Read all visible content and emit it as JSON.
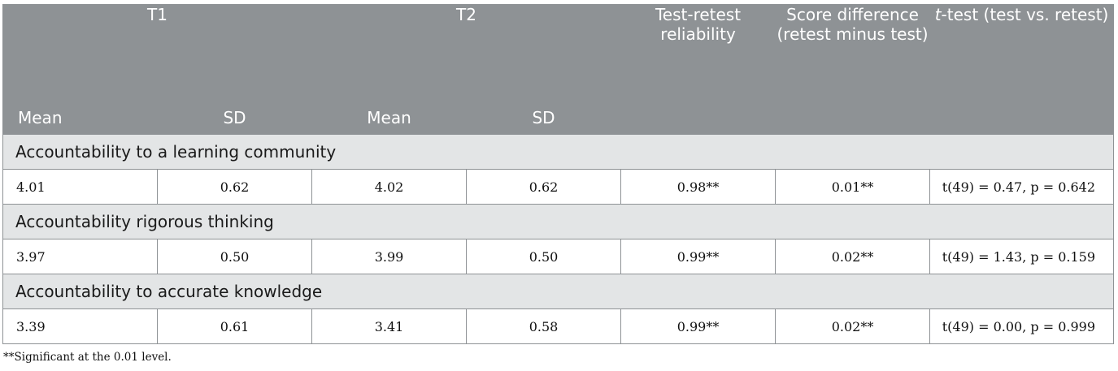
{
  "table": {
    "headers": {
      "t1": "T1",
      "t2": "T2",
      "reliability": "Test-retest reliability",
      "difference": "Score difference (retest minus test)",
      "ttest_italic": "t",
      "ttest_rest": "-test (test vs. retest)",
      "t1_mean": "Mean",
      "t1_sd": "SD",
      "t2_mean": "Mean",
      "t2_sd": "SD"
    },
    "sections": [
      {
        "title": "Accountability to a learning community",
        "row": {
          "t1_mean": "4.01",
          "t1_sd": "0.62",
          "t2_mean": "4.02",
          "t2_sd": "0.62",
          "reliability": "0.98**",
          "difference": "0.01**",
          "ttest": "t(49) = 0.47, p = 0.642"
        }
      },
      {
        "title": "Accountability rigorous thinking",
        "row": {
          "t1_mean": "3.97",
          "t1_sd": "0.50",
          "t2_mean": "3.99",
          "t2_sd": "0.50",
          "reliability": "0.99**",
          "difference": "0.02**",
          "ttest": "t(49) = 1.43, p = 0.159"
        }
      },
      {
        "title": "Accountability to accurate knowledge",
        "row": {
          "t1_mean": "3.39",
          "t1_sd": "0.61",
          "t2_mean": "3.41",
          "t2_sd": "0.58",
          "reliability": "0.99**",
          "difference": "0.02**",
          "ttest": "t(49) = 0.00, p = 0.999"
        }
      }
    ]
  },
  "footnote": "**Significant at the 0.01 level."
}
